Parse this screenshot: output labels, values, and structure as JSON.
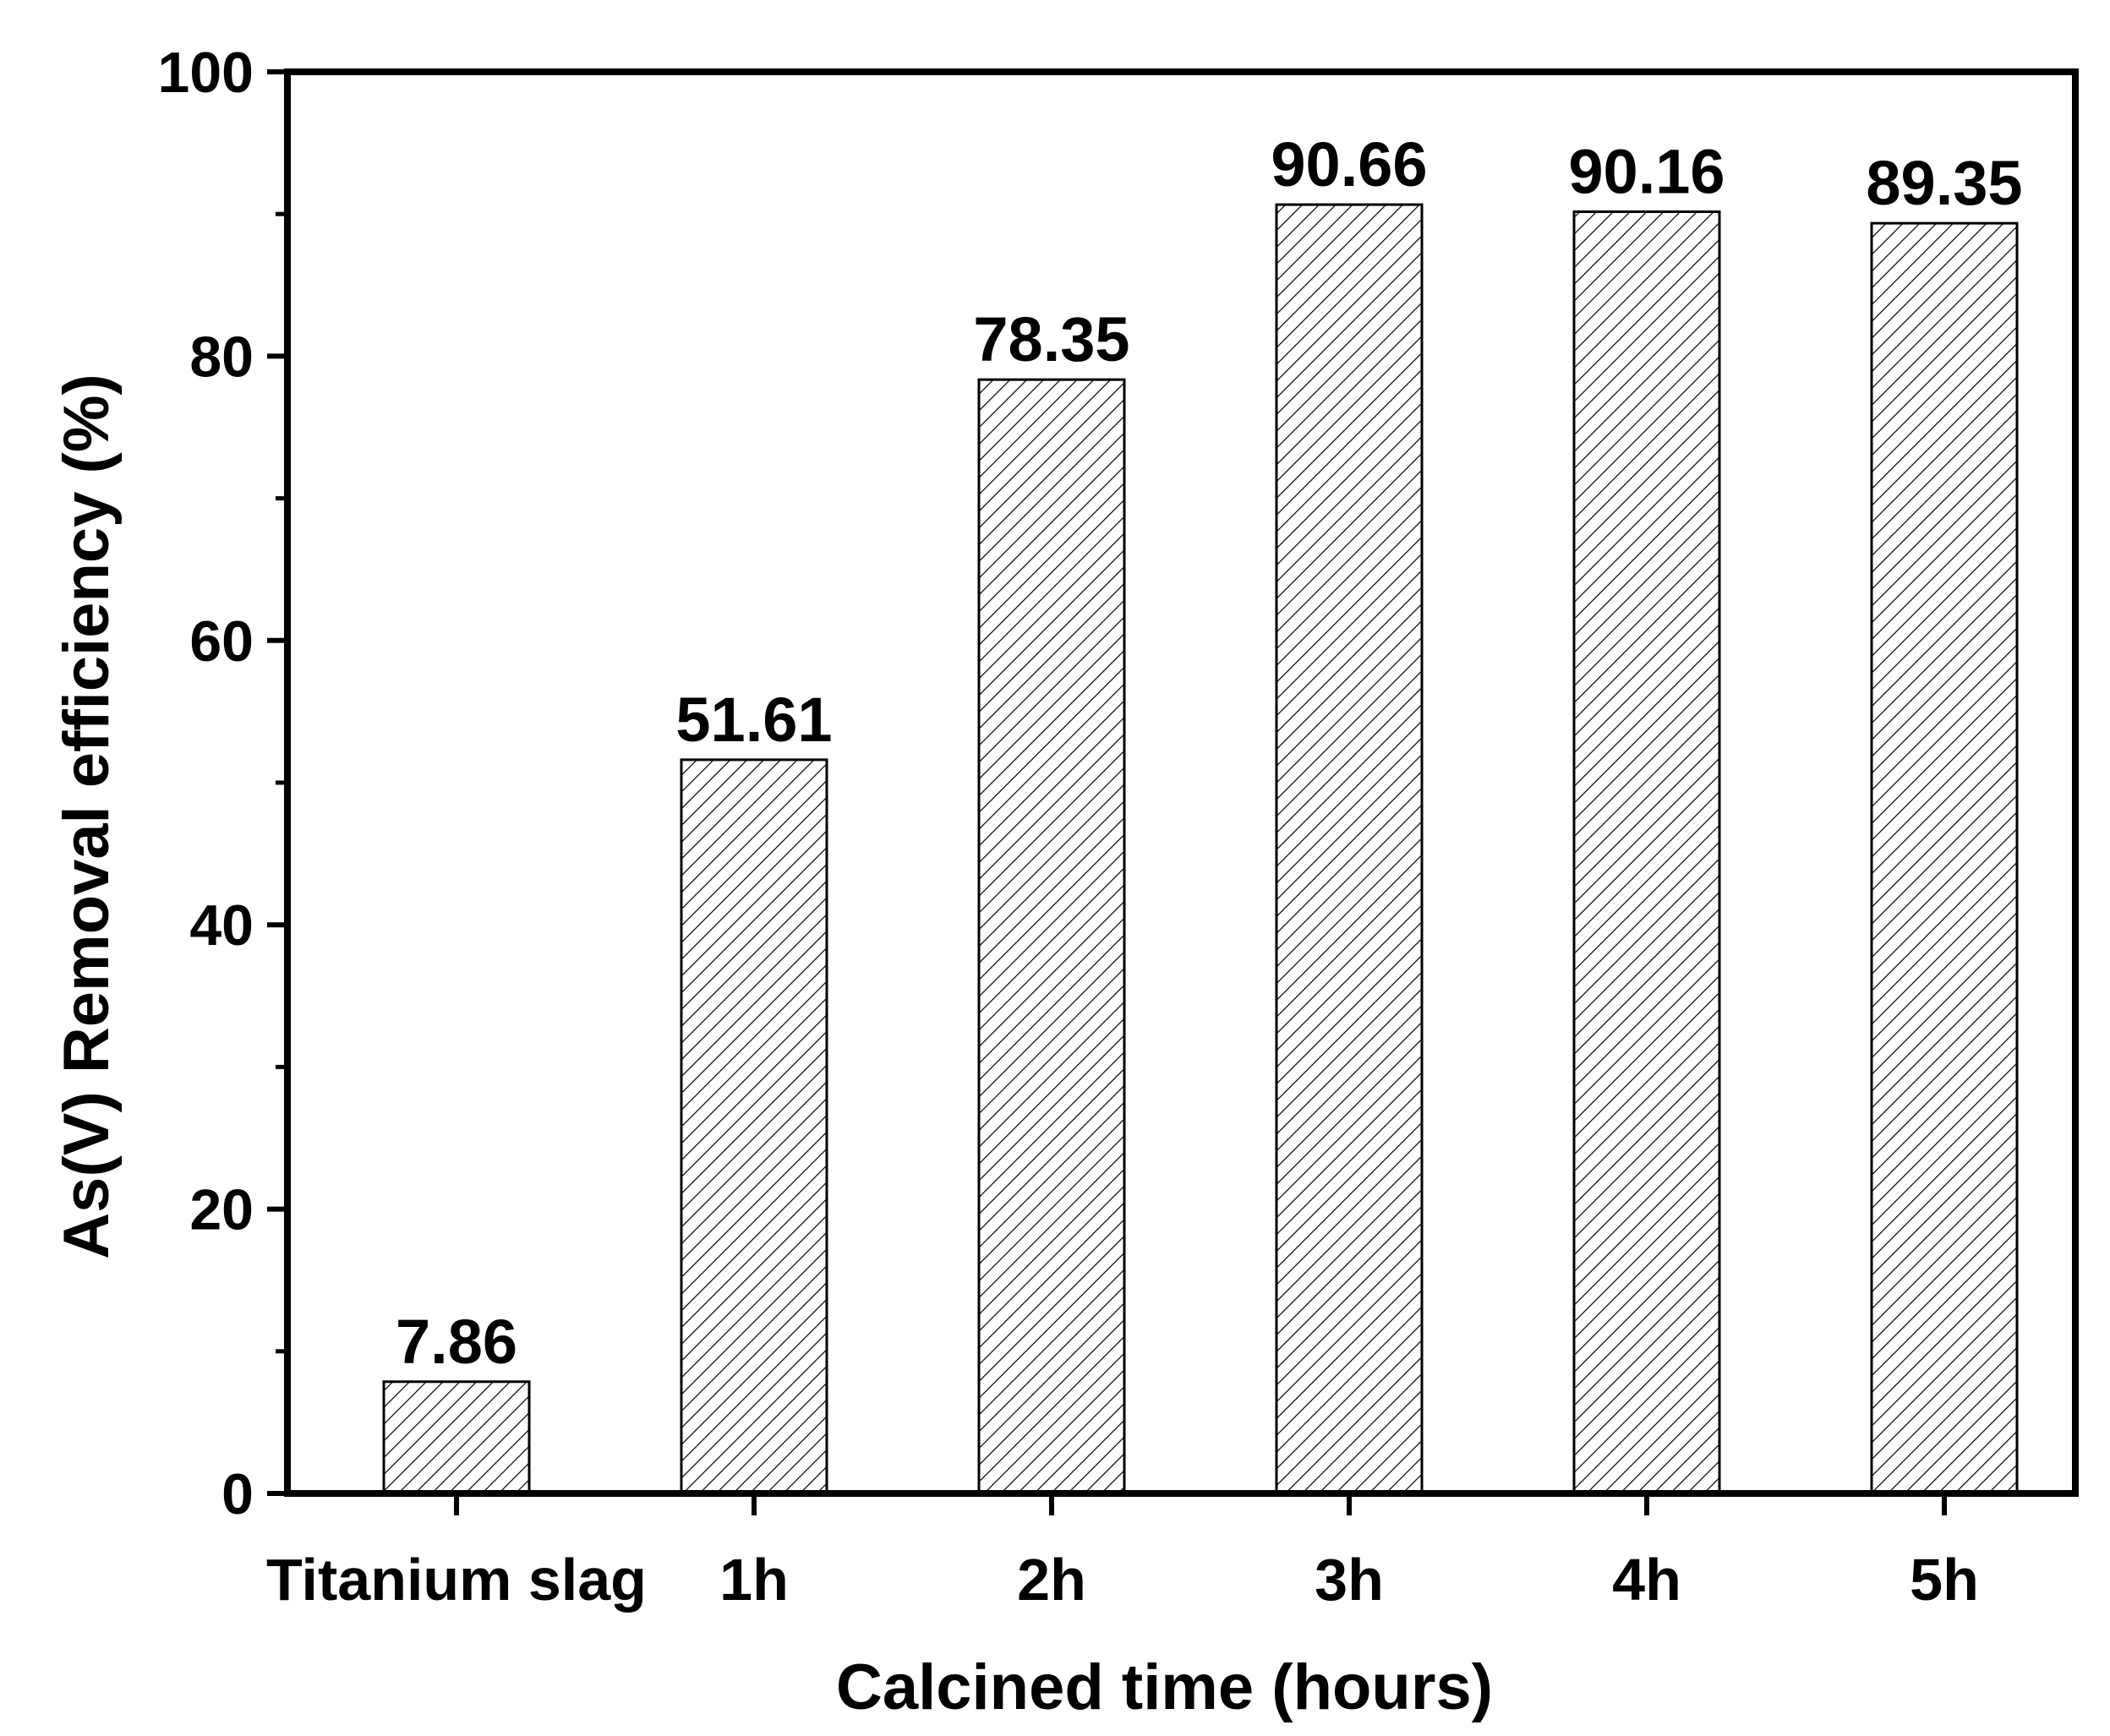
{
  "chart_data": {
    "type": "bar",
    "title": "",
    "xlabel": "Calcined time (hours)",
    "ylabel": "As(V) Removal efficiency (%)",
    "categories": [
      "Titanium slag",
      "1h",
      "2h",
      "3h",
      "4h",
      "5h"
    ],
    "values": [
      7.86,
      51.61,
      78.35,
      90.66,
      90.16,
      89.35
    ],
    "value_labels": [
      "7.86",
      "51.61",
      "78.35",
      "90.66",
      "90.16",
      "89.35"
    ],
    "ylim": [
      0,
      100
    ],
    "yticks": [
      0,
      20,
      40,
      60,
      80,
      100
    ],
    "ytick_labels": [
      "0",
      "20",
      "40",
      "60",
      "80",
      "100"
    ],
    "grid": false,
    "legend": "none",
    "bar_fill": "hatched diagonal",
    "colors": {
      "bar_stroke": "#000000",
      "hatch": "#000000",
      "background": "#ffffff"
    }
  }
}
